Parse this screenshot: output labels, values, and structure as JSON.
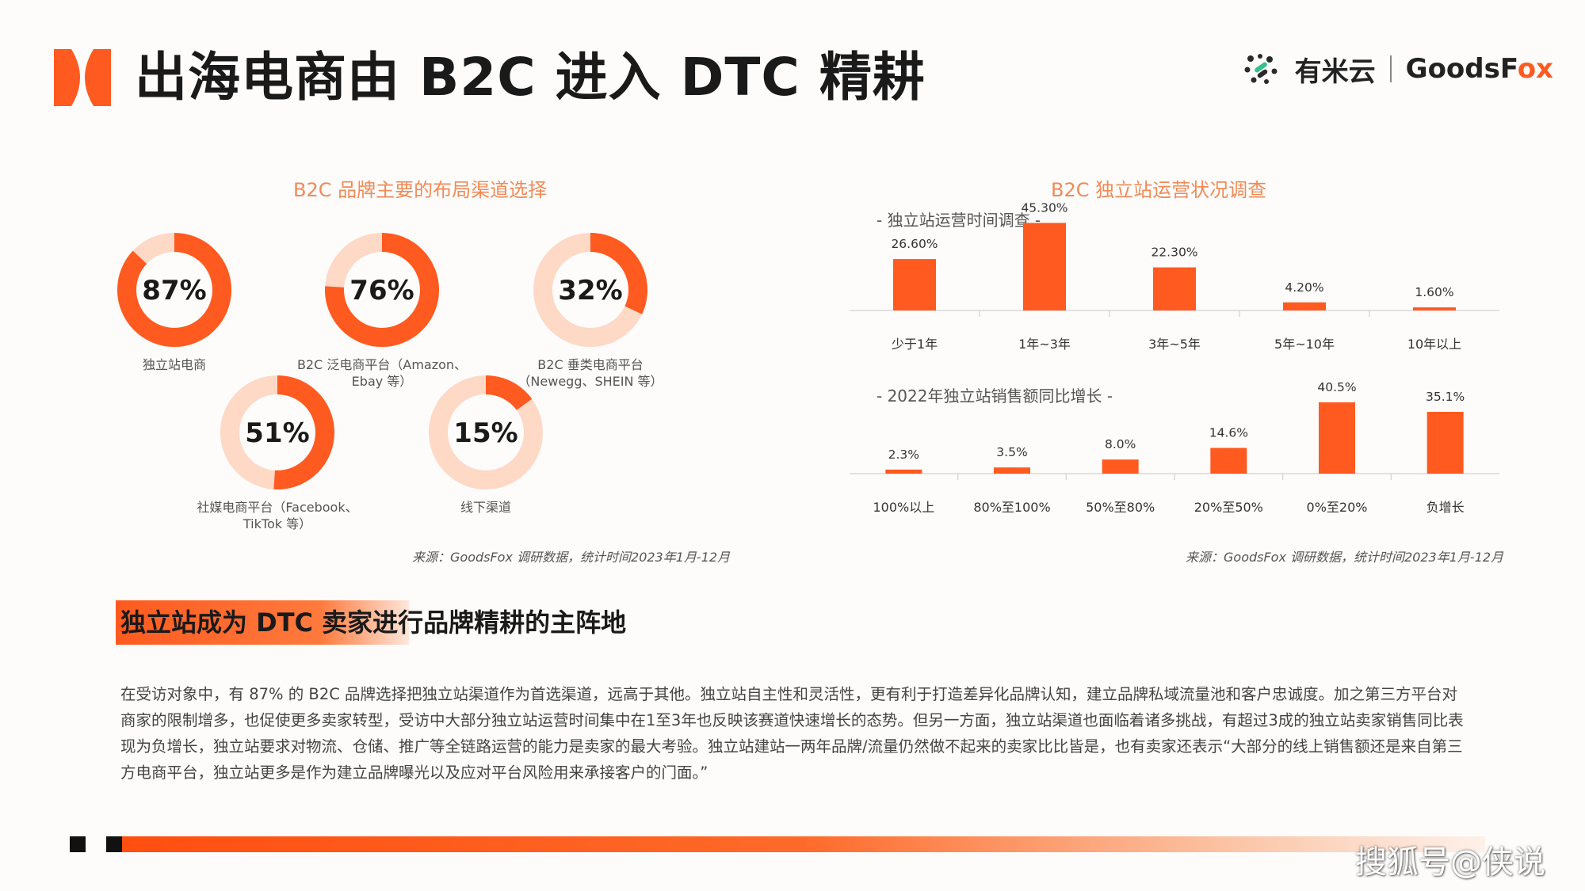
{
  "header": {
    "title": "出海电商由 B2C 进入 DTC 精耕",
    "brand_cn": "有米云",
    "brand_en_prefix": "GoodsF",
    "brand_en_accent": "ox",
    "accent_color": "#ff5a1f"
  },
  "left_panel": {
    "title": "B2C 品牌主要的布局渠道选择",
    "source": "来源：GoodsFox 调研数据，统计时间2023年1月-12月"
  },
  "right_panel": {
    "title": "B2C 独立站运营状况调查",
    "source": "来源：GoodsFox 调研数据，统计时间2023年1月-12月",
    "subtitle1": "- 独立站运营时间调查 -",
    "subtitle2": "- 2022年独立站销售额同比增长 -"
  },
  "chart_data": [
    {
      "type": "pie",
      "title": "B2C 品牌主要的布局渠道选择",
      "slices": [
        {
          "label": "独立站电商",
          "value": 87,
          "display": "87%"
        },
        {
          "label": "B2C 泛电商平台（Amazon、Ebay 等）",
          "label_line1": "B2C 泛电商平台（Amazon、",
          "label_line2": "Ebay 等）",
          "value": 76,
          "display": "76%"
        },
        {
          "label": "B2C 垂类电商平台（Newegg、SHEIN 等）",
          "label_line1": "B2C 垂类电商平台",
          "label_line2": "（Newegg、SHEIN 等）",
          "value": 32,
          "display": "32%"
        },
        {
          "label": "社媒电商平台（Facebook、TikTok 等）",
          "label_line1": "社媒电商平台（Facebook、",
          "label_line2": "TikTok 等）",
          "value": 51,
          "display": "51%"
        },
        {
          "label": "线下渠道",
          "value": 15,
          "display": "15%"
        }
      ],
      "colors": {
        "filled": "#ff5a1f",
        "remaining": "#fdd9c6"
      }
    },
    {
      "type": "bar",
      "title": "- 独立站运营时间调查 -",
      "categories": [
        "少于1年",
        "1年~3年",
        "3年~5年",
        "5年~10年",
        "10年以上"
      ],
      "values": [
        26.6,
        45.3,
        22.3,
        4.2,
        1.6
      ],
      "labels": [
        "26.60%",
        "45.30%",
        "22.30%",
        "4.20%",
        "1.60%"
      ],
      "unit": "%",
      "ylim": [
        0,
        50
      ],
      "color": "#ff5a1f"
    },
    {
      "type": "bar",
      "title": "- 2022年独立站销售额同比增长 -",
      "categories": [
        "100%以上",
        "80%至100%",
        "50%至80%",
        "20%至50%",
        "0%至20%",
        "负增长"
      ],
      "values": [
        2.3,
        3.5,
        8.0,
        14.6,
        40.5,
        35.1
      ],
      "labels": [
        "2.3%",
        "3.5%",
        "8.0%",
        "14.6%",
        "40.5%",
        "35.1%"
      ],
      "unit": "%",
      "ylim": [
        0,
        45
      ],
      "color": "#ff5a1f"
    }
  ],
  "banner": {
    "text": "独立站成为 DTC 卖家进行品牌精耕的主阵地"
  },
  "body": {
    "paragraph": "在受访对象中，有 87% 的 B2C 品牌选择把独立站渠道作为首选渠道，远高于其他。独立站自主性和灵活性，更有利于打造差异化品牌认知，建立品牌私域流量池和客户忠诚度。加之第三方平台对商家的限制增多，也促使更多卖家转型，受访中大部分独立站运营时间集中在1至3年也反映该赛道快速增长的态势。但另一方面，独立站渠道也面临着诸多挑战，有超过3成的独立站卖家销售同比表现为负增长，独立站要求对物流、仓储、推广等全链路运营的能力是卖家的最大考验。独立站建站一两年品牌/流量仍然做不起来的卖家比比皆是，也有卖家还表示“大部分的线上销售额还是来自第三方电商平台，独立站更多是作为建立品牌曝光以及应对平台风险用来承接客户的门面。”"
  },
  "footer": {
    "watermark": "搜狐号@侠说"
  }
}
